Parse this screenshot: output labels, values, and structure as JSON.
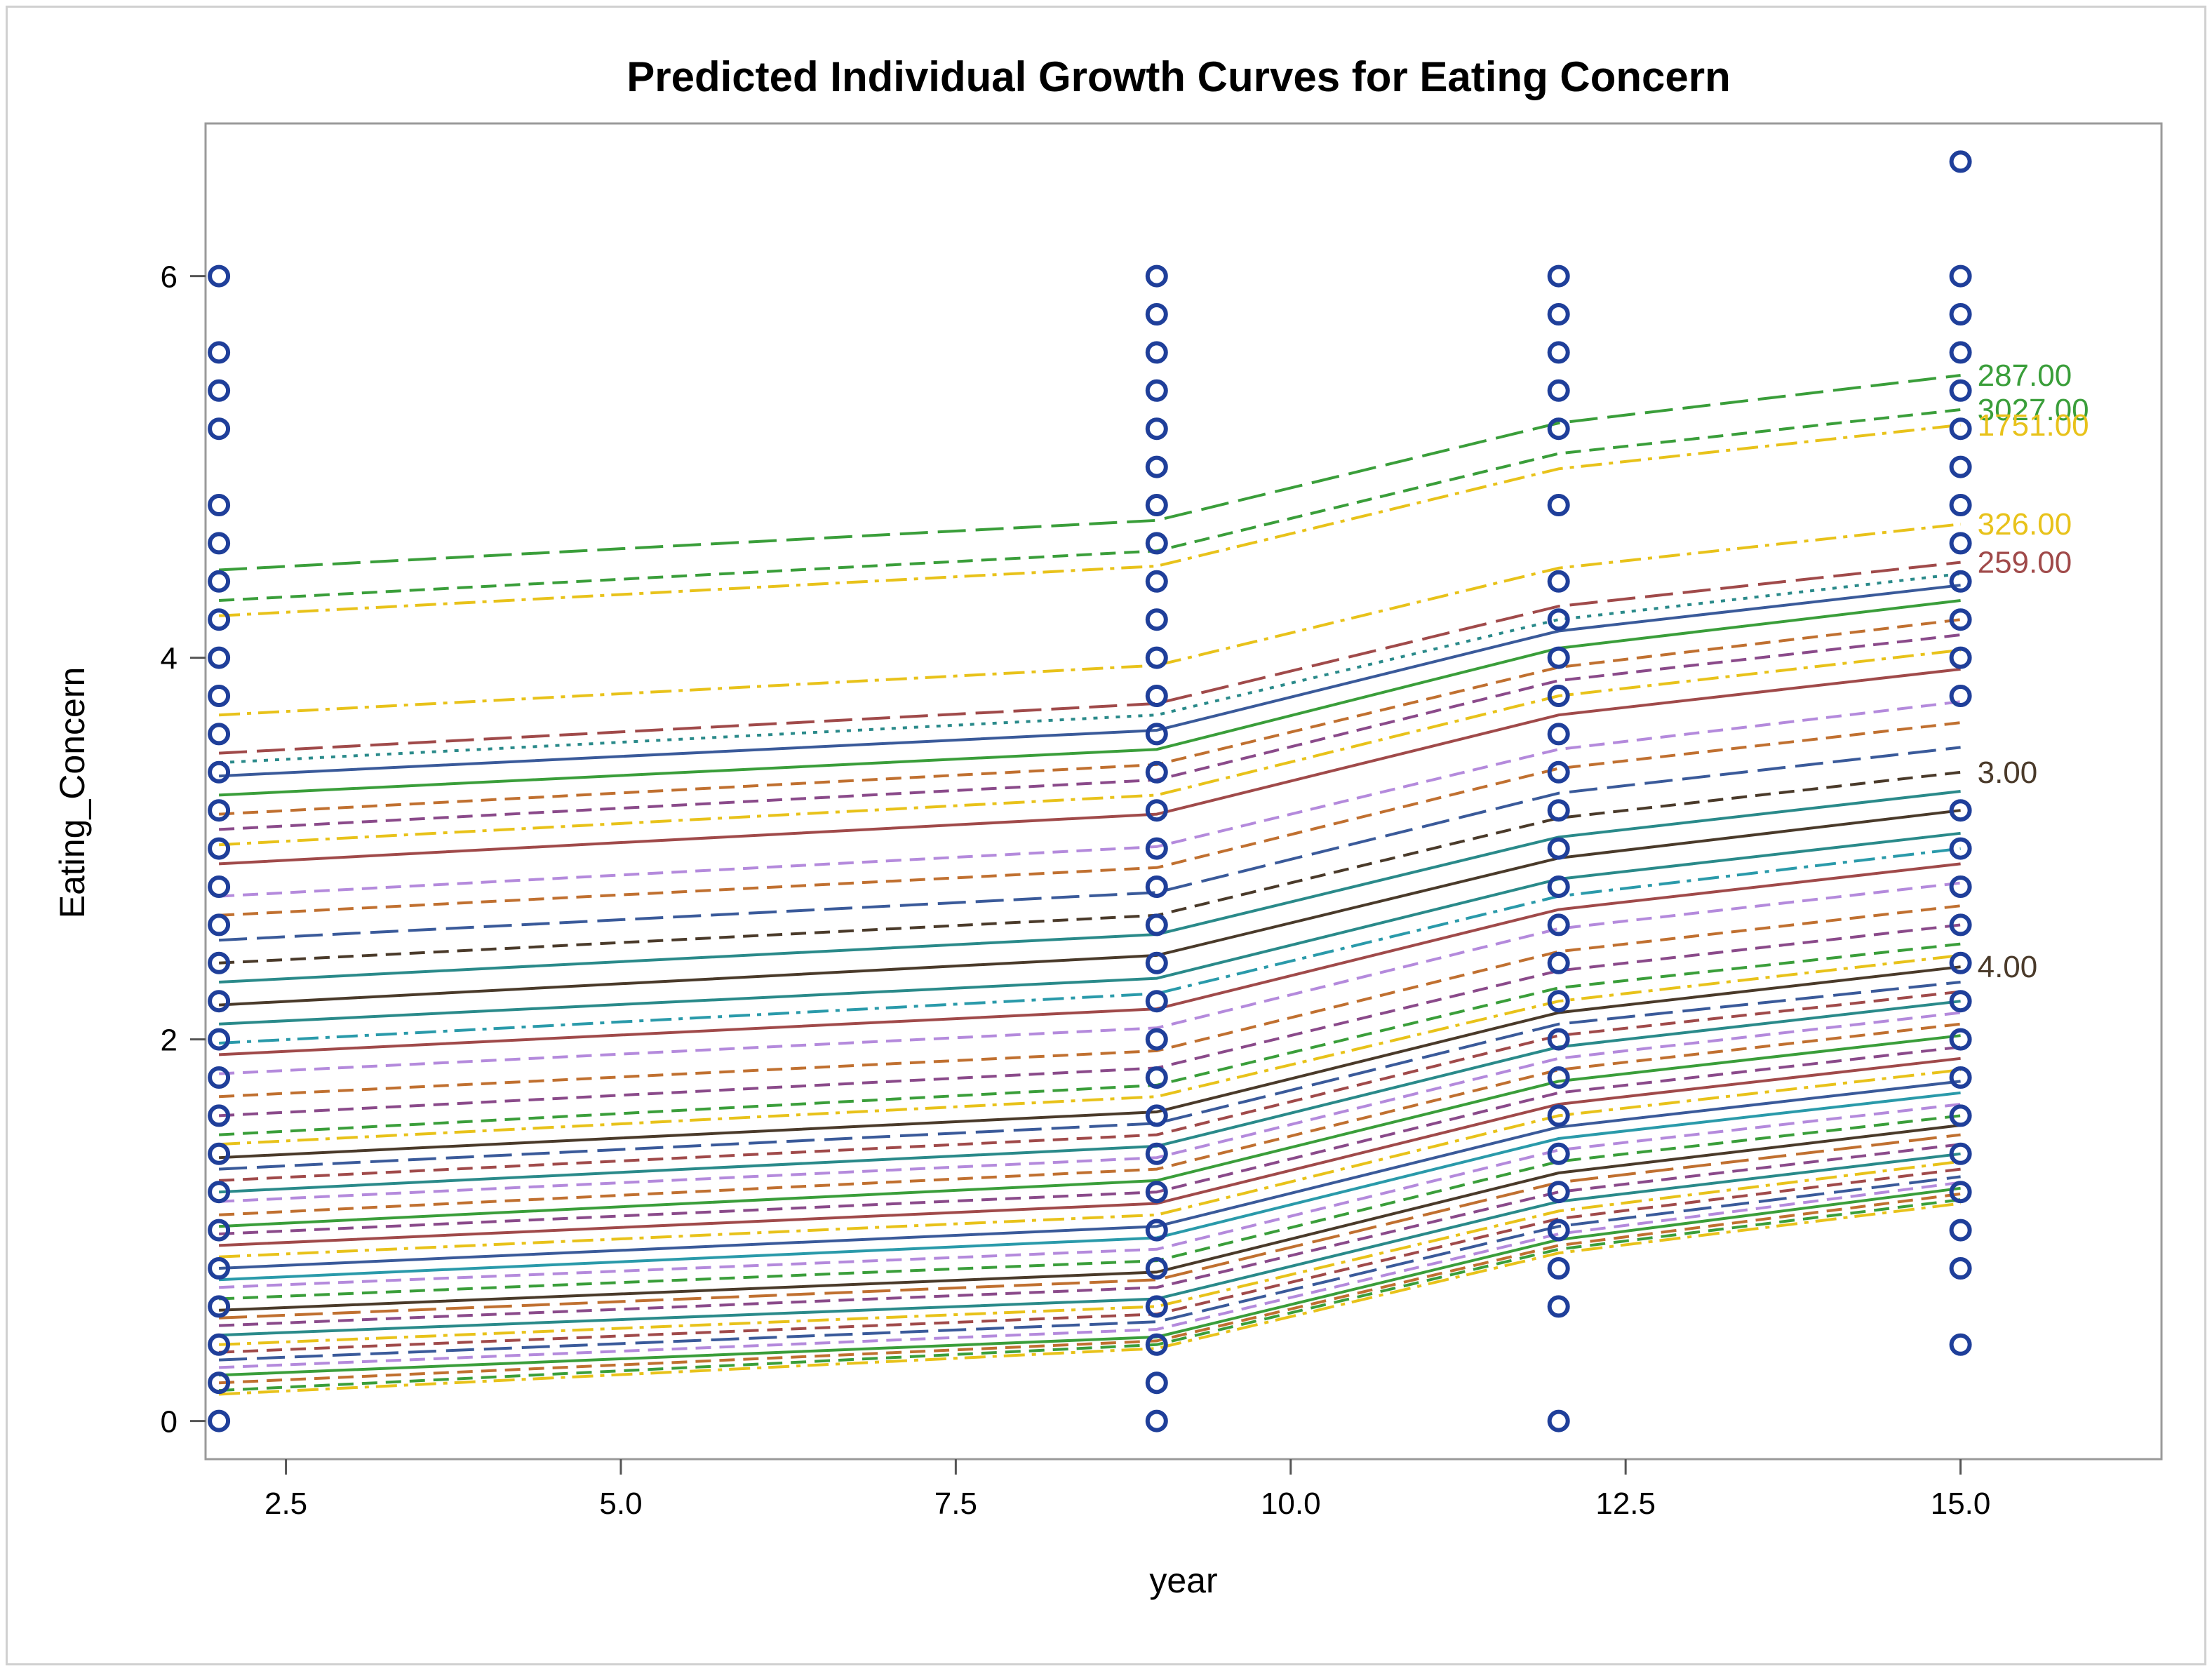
{
  "chart_data": {
    "type": "line",
    "title": "Predicted Individual Growth Curves for Eating Concern",
    "xlabel": "year",
    "ylabel": "Eating_Concern",
    "xlim": [
      1.9,
      16.5
    ],
    "ylim": [
      -0.2,
      6.8
    ],
    "x_ticks": [
      2.5,
      5.0,
      7.5,
      10.0,
      12.5,
      15.0
    ],
    "x_tick_labels": [
      "2.5",
      "5.0",
      "7.5",
      "10.0",
      "12.5",
      "15.0"
    ],
    "y_ticks": [
      0,
      2,
      4,
      6
    ],
    "y_tick_labels": [
      "0",
      "2",
      "4",
      "6"
    ],
    "grid": false,
    "legend": "none",
    "observation_x": [
      2,
      9,
      12,
      15
    ],
    "observed_points": {
      "marker": "open-circle",
      "color": "#1f3f9a",
      "at_x_2": [
        0,
        0.2,
        0.4,
        0.6,
        0.8,
        1.0,
        1.2,
        1.4,
        1.6,
        1.8,
        2.0,
        2.2,
        2.4,
        2.6,
        2.8,
        3.0,
        3.2,
        3.4,
        3.6,
        3.8,
        4.0,
        4.2,
        4.4,
        4.6,
        4.8,
        5.2,
        5.4,
        5.6,
        6.0
      ],
      "at_x_9": [
        0,
        0.2,
        0.4,
        0.6,
        0.8,
        1.0,
        1.2,
        1.4,
        1.6,
        1.8,
        2.0,
        2.2,
        2.4,
        2.6,
        2.8,
        3.0,
        3.2,
        3.4,
        3.6,
        3.8,
        4.0,
        4.2,
        4.4,
        4.6,
        4.8,
        5.0,
        5.2,
        5.4,
        5.6,
        5.8,
        6.0
      ],
      "at_x_12": [
        0,
        0.6,
        0.8,
        1.0,
        1.2,
        1.4,
        1.6,
        1.8,
        2.0,
        2.2,
        2.4,
        2.6,
        2.8,
        3.0,
        3.2,
        3.4,
        3.6,
        3.8,
        4.0,
        4.2,
        4.4,
        4.8,
        5.2,
        5.4,
        5.6,
        5.8,
        6.0
      ],
      "at_x_15": [
        0.4,
        0.8,
        1.0,
        1.2,
        1.4,
        1.6,
        1.8,
        2.0,
        2.2,
        2.4,
        2.6,
        2.8,
        3.0,
        3.2,
        3.8,
        4.0,
        4.2,
        4.4,
        4.6,
        4.8,
        5.0,
        5.2,
        5.4,
        5.6,
        5.8,
        6.0,
        6.6
      ]
    },
    "series": [
      {
        "name": "287.00",
        "values": [
          4.46,
          4.72,
          5.23,
          5.48
        ],
        "color": "#3a9e3a",
        "dash": "long"
      },
      {
        "name": "3027.00",
        "values": [
          4.3,
          4.56,
          5.07,
          5.3
        ],
        "color": "#3a9e3a",
        "dash": "dash"
      },
      {
        "name": "1751.00",
        "values": [
          4.22,
          4.48,
          4.99,
          5.22
        ],
        "color": "#e8c21a",
        "dash": "dashdot"
      },
      {
        "name": "326.00",
        "values": [
          3.7,
          3.96,
          4.47,
          4.7
        ],
        "color": "#e8c21a",
        "dash": "dashdot"
      },
      {
        "name": "259.00",
        "values": [
          3.5,
          3.76,
          4.27,
          4.5
        ],
        "color": "#a04a4a",
        "dash": "long"
      },
      {
        "name": "",
        "values": [
          3.45,
          3.7,
          4.2,
          4.44
        ],
        "color": "#2a8a8a",
        "dash": "dot"
      },
      {
        "name": "",
        "values": [
          3.38,
          3.62,
          4.14,
          4.38
        ],
        "color": "#3a5a9a",
        "dash": "solid"
      },
      {
        "name": "",
        "values": [
          3.28,
          3.52,
          4.05,
          4.3
        ],
        "color": "#3a9e3a",
        "dash": "solid"
      },
      {
        "name": "",
        "values": [
          3.18,
          3.44,
          3.95,
          4.2
        ],
        "color": "#c07030",
        "dash": "dash"
      },
      {
        "name": "",
        "values": [
          3.1,
          3.36,
          3.88,
          4.12
        ],
        "color": "#8a4a8a",
        "dash": "dash"
      },
      {
        "name": "",
        "values": [
          3.02,
          3.28,
          3.8,
          4.04
        ],
        "color": "#e8c21a",
        "dash": "dashdot"
      },
      {
        "name": "",
        "values": [
          2.92,
          3.18,
          3.7,
          3.94
        ],
        "color": "#a04a4a",
        "dash": "solid"
      },
      {
        "name": "",
        "values": [
          2.75,
          3.01,
          3.52,
          3.77
        ],
        "color": "#b48adc",
        "dash": "dash"
      },
      {
        "name": "",
        "values": [
          2.65,
          2.9,
          3.42,
          3.66
        ],
        "color": "#c07030",
        "dash": "dash"
      },
      {
        "name": "",
        "values": [
          2.52,
          2.77,
          3.29,
          3.53
        ],
        "color": "#3a5a9a",
        "dash": "long"
      },
      {
        "name": "3.00",
        "values": [
          2.4,
          2.65,
          3.16,
          3.4
        ],
        "color": "#4a3a2a",
        "dash": "dash"
      },
      {
        "name": "",
        "values": [
          2.3,
          2.55,
          3.06,
          3.3
        ],
        "color": "#2a8a8a",
        "dash": "solid"
      },
      {
        "name": "",
        "values": [
          2.18,
          2.44,
          2.95,
          3.2
        ],
        "color": "#4a3a2a",
        "dash": "solid"
      },
      {
        "name": "",
        "values": [
          2.08,
          2.32,
          2.84,
          3.08
        ],
        "color": "#2a8a8a",
        "dash": "solid"
      },
      {
        "name": "",
        "values": [
          1.98,
          2.24,
          2.75,
          3.0
        ],
        "color": "#2a9aaa",
        "dash": "dashdot"
      },
      {
        "name": "",
        "values": [
          1.92,
          2.16,
          2.68,
          2.92
        ],
        "color": "#a04a4a",
        "dash": "solid"
      },
      {
        "name": "",
        "values": [
          1.82,
          2.06,
          2.58,
          2.82
        ],
        "color": "#b48adc",
        "dash": "dash"
      },
      {
        "name": "",
        "values": [
          1.7,
          1.94,
          2.46,
          2.7
        ],
        "color": "#c07030",
        "dash": "dash"
      },
      {
        "name": "",
        "values": [
          1.6,
          1.85,
          2.36,
          2.6
        ],
        "color": "#8a4a8a",
        "dash": "dash"
      },
      {
        "name": "",
        "values": [
          1.5,
          1.76,
          2.27,
          2.5
        ],
        "color": "#3a9e3a",
        "dash": "dash"
      },
      {
        "name": "",
        "values": [
          1.45,
          1.7,
          2.2,
          2.44
        ],
        "color": "#e8c21a",
        "dash": "dashdot"
      },
      {
        "name": "4.00",
        "values": [
          1.38,
          1.62,
          2.14,
          2.38
        ],
        "color": "#4a3a2a",
        "dash": "solid"
      },
      {
        "name": "",
        "values": [
          1.32,
          1.56,
          2.08,
          2.3
        ],
        "color": "#3a5a9a",
        "dash": "long"
      },
      {
        "name": "",
        "values": [
          1.26,
          1.5,
          2.02,
          2.25
        ],
        "color": "#a04a4a",
        "dash": "dash"
      },
      {
        "name": "",
        "values": [
          1.2,
          1.44,
          1.96,
          2.2
        ],
        "color": "#2a8a8a",
        "dash": "solid"
      },
      {
        "name": "",
        "values": [
          1.15,
          1.38,
          1.9,
          2.14
        ],
        "color": "#b48adc",
        "dash": "dash"
      },
      {
        "name": "",
        "values": [
          1.08,
          1.32,
          1.84,
          2.08
        ],
        "color": "#c07030",
        "dash": "dash"
      },
      {
        "name": "",
        "values": [
          1.02,
          1.26,
          1.78,
          2.02
        ],
        "color": "#3a9e3a",
        "dash": "solid"
      },
      {
        "name": "",
        "values": [
          0.98,
          1.2,
          1.72,
          1.96
        ],
        "color": "#8a4a8a",
        "dash": "dash"
      },
      {
        "name": "",
        "values": [
          0.92,
          1.14,
          1.66,
          1.9
        ],
        "color": "#a04a4a",
        "dash": "solid"
      },
      {
        "name": "",
        "values": [
          0.86,
          1.08,
          1.6,
          1.84
        ],
        "color": "#e8c21a",
        "dash": "dashdot"
      },
      {
        "name": "",
        "values": [
          0.8,
          1.02,
          1.54,
          1.78
        ],
        "color": "#3a5a9a",
        "dash": "solid"
      },
      {
        "name": "",
        "values": [
          0.74,
          0.96,
          1.48,
          1.72
        ],
        "color": "#2a9aaa",
        "dash": "solid"
      },
      {
        "name": "",
        "values": [
          0.7,
          0.9,
          1.42,
          1.66
        ],
        "color": "#b48adc",
        "dash": "dash"
      },
      {
        "name": "",
        "values": [
          0.64,
          0.84,
          1.36,
          1.6
        ],
        "color": "#3a9e3a",
        "dash": "dash"
      },
      {
        "name": "",
        "values": [
          0.58,
          0.78,
          1.3,
          1.55
        ],
        "color": "#4a3a2a",
        "dash": "solid"
      },
      {
        "name": "",
        "values": [
          0.54,
          0.74,
          1.25,
          1.5
        ],
        "color": "#c07030",
        "dash": "long"
      },
      {
        "name": "",
        "values": [
          0.5,
          0.7,
          1.2,
          1.45
        ],
        "color": "#8a4a8a",
        "dash": "dash"
      },
      {
        "name": "",
        "values": [
          0.45,
          0.64,
          1.15,
          1.4
        ],
        "color": "#2a8a8a",
        "dash": "solid"
      },
      {
        "name": "",
        "values": [
          0.4,
          0.6,
          1.1,
          1.36
        ],
        "color": "#e8c21a",
        "dash": "dashdot"
      },
      {
        "name": "",
        "values": [
          0.36,
          0.56,
          1.06,
          1.32
        ],
        "color": "#a04a4a",
        "dash": "dash"
      },
      {
        "name": "",
        "values": [
          0.32,
          0.52,
          1.02,
          1.28
        ],
        "color": "#3a5a9a",
        "dash": "long"
      },
      {
        "name": "",
        "values": [
          0.28,
          0.48,
          0.98,
          1.25
        ],
        "color": "#b48adc",
        "dash": "dash"
      },
      {
        "name": "",
        "values": [
          0.24,
          0.44,
          0.95,
          1.22
        ],
        "color": "#3a9e3a",
        "dash": "solid"
      },
      {
        "name": "",
        "values": [
          0.2,
          0.42,
          0.92,
          1.19
        ],
        "color": "#c07030",
        "dash": "dash"
      },
      {
        "name": "",
        "values": [
          0.16,
          0.4,
          0.9,
          1.16
        ],
        "color": "#3a9e3a",
        "dash": "dash"
      },
      {
        "name": "",
        "values": [
          0.14,
          0.38,
          0.88,
          1.14
        ],
        "color": "#e8c21a",
        "dash": "dashdot"
      }
    ]
  }
}
